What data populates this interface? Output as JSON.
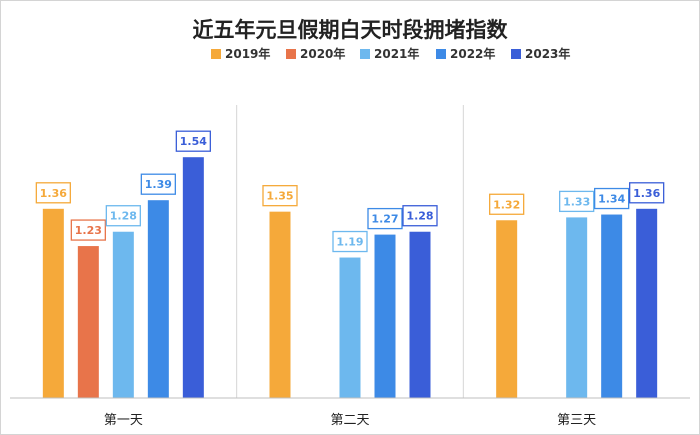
{
  "chart_data": {
    "type": "bar",
    "title": "近五年元旦假期白天时段拥堵指数",
    "categories": [
      "第一天",
      "第二天",
      "第三天"
    ],
    "series": [
      {
        "name": "2019年",
        "color": "#f5a93a",
        "values": [
          1.36,
          1.35,
          1.32
        ]
      },
      {
        "name": "2020年",
        "color": "#e8744a",
        "values": [
          1.23,
          null,
          null
        ]
      },
      {
        "name": "2021年",
        "color": "#6db8ee",
        "values": [
          1.28,
          1.19,
          1.33
        ]
      },
      {
        "name": "2022年",
        "color": "#3d8ae6",
        "values": [
          1.39,
          1.27,
          1.34
        ]
      },
      {
        "name": "2023年",
        "color": "#3a5ed8",
        "values": [
          1.54,
          1.28,
          1.36
        ]
      }
    ],
    "ylim": [
      0.7,
      1.6
    ],
    "legend_position": "top-center",
    "grid": false
  }
}
